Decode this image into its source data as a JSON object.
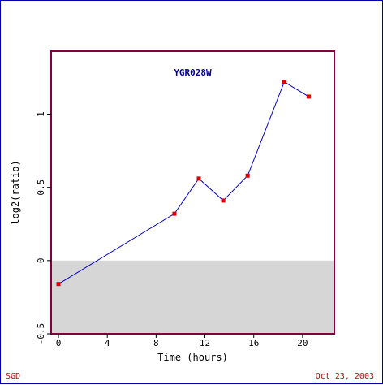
{
  "chart_data": {
    "type": "line",
    "title": "YGR028W",
    "xlabel": "Time (hours)",
    "ylabel": "log2(ratio)",
    "xlim": [
      -0.6,
      22.6
    ],
    "ylim": [
      -0.5,
      1.43
    ],
    "xticks": [
      0,
      4,
      8,
      12,
      16,
      20
    ],
    "yticks": [
      -0.5,
      0,
      0.5,
      1
    ],
    "ytick_labels": [
      "-0.5",
      "0",
      "0.5",
      "1"
    ],
    "grid": false,
    "shade_below_zero": true,
    "series": [
      {
        "x": [
          0,
          9.5,
          11.5,
          13.5,
          15.5,
          18.5,
          20.5
        ],
        "y": [
          -0.16,
          0.32,
          0.56,
          0.41,
          0.58,
          1.22,
          1.12
        ]
      }
    ]
  },
  "footer": {
    "left": "SGD",
    "right": "Oct 23, 2003"
  },
  "colors": {
    "frame": "#0000aa",
    "plot_border": "#800040",
    "title": "#000099",
    "line": "#0000cc",
    "marker": "#dd0000",
    "shade": "#d6d6d6",
    "footer": "#cc0000"
  }
}
